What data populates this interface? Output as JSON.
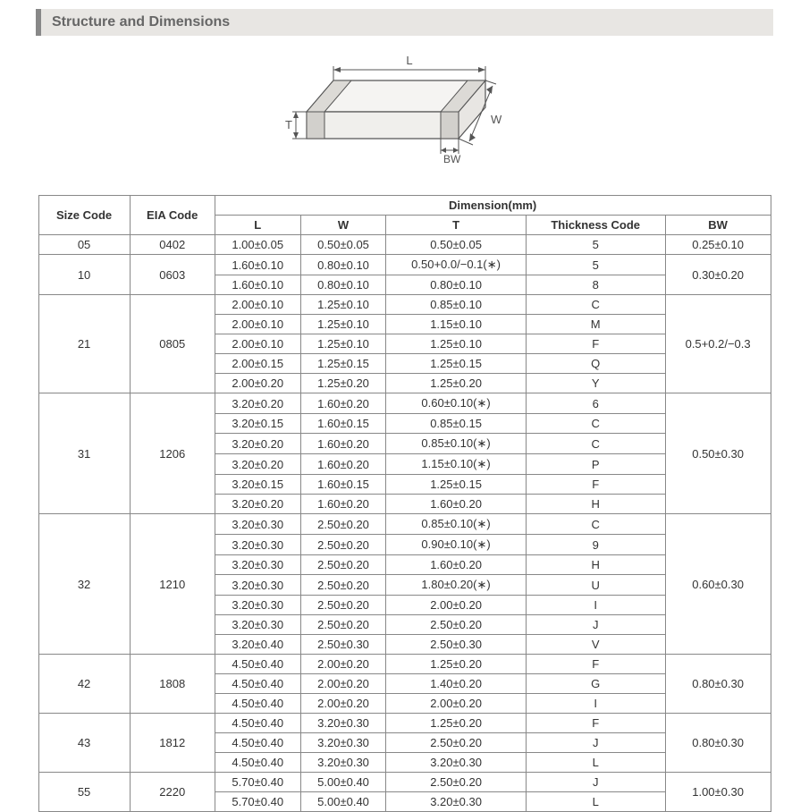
{
  "title": "Structure and Dimensions",
  "diagram": {
    "labels": {
      "L": "L",
      "W": "W",
      "T": "T",
      "BW": "BW"
    },
    "stroke": "#555",
    "fill": "#f5f4f2"
  },
  "table": {
    "headers": {
      "size_code": "Size Code",
      "eia_code": "EIA Code",
      "dimension_group": "Dimension(mm)",
      "L": "L",
      "W": "W",
      "T": "T",
      "thickness_code": "Thickness  Code",
      "BW": "BW"
    },
    "groups": [
      {
        "size_code": "05",
        "eia_code": "0402",
        "bw": "0.25±0.10",
        "rows": [
          {
            "L": "1.00±0.05",
            "W": "0.50±0.05",
            "T": "0.50±0.05",
            "tc": "5"
          }
        ]
      },
      {
        "size_code": "10",
        "eia_code": "0603",
        "bw": "0.30±0.20",
        "rows": [
          {
            "L": "1.60±0.10",
            "W": "0.80±0.10",
            "T": "0.50+0.0/−0.1(∗)",
            "tc": "5"
          },
          {
            "L": "1.60±0.10",
            "W": "0.80±0.10",
            "T": "0.80±0.10",
            "tc": "8"
          }
        ]
      },
      {
        "size_code": "21",
        "eia_code": "0805",
        "bw": "0.5+0.2/−0.3",
        "rows": [
          {
            "L": "2.00±0.10",
            "W": "1.25±0.10",
            "T": "0.85±0.10",
            "tc": "C"
          },
          {
            "L": "2.00±0.10",
            "W": "1.25±0.10",
            "T": "1.15±0.10",
            "tc": "M"
          },
          {
            "L": "2.00±0.10",
            "W": "1.25±0.10",
            "T": "1.25±0.10",
            "tc": "F"
          },
          {
            "L": "2.00±0.15",
            "W": "1.25±0.15",
            "T": "1.25±0.15",
            "tc": "Q"
          },
          {
            "L": "2.00±0.20",
            "W": "1.25±0.20",
            "T": "1.25±0.20",
            "tc": "Y"
          }
        ]
      },
      {
        "size_code": "31",
        "eia_code": "1206",
        "bw": "0.50±0.30",
        "rows": [
          {
            "L": "3.20±0.20",
            "W": "1.60±0.20",
            "T": "0.60±0.10(∗)",
            "tc": "6"
          },
          {
            "L": "3.20±0.15",
            "W": "1.60±0.15",
            "T": "0.85±0.15",
            "tc": "C"
          },
          {
            "L": "3.20±0.20",
            "W": "1.60±0.20",
            "T": "0.85±0.10(∗)",
            "tc": "C"
          },
          {
            "L": "3.20±0.20",
            "W": "1.60±0.20",
            "T": "1.15±0.10(∗)",
            "tc": "P"
          },
          {
            "L": "3.20±0.15",
            "W": "1.60±0.15",
            "T": "1.25±0.15",
            "tc": "F"
          },
          {
            "L": "3.20±0.20",
            "W": "1.60±0.20",
            "T": "1.60±0.20",
            "tc": "H"
          }
        ]
      },
      {
        "size_code": "32",
        "eia_code": "1210",
        "bw": "0.60±0.30",
        "rows": [
          {
            "L": "3.20±0.30",
            "W": "2.50±0.20",
            "T": "0.85±0.10(∗)",
            "tc": "C"
          },
          {
            "L": "3.20±0.30",
            "W": "2.50±0.20",
            "T": "0.90±0.10(∗)",
            "tc": "9"
          },
          {
            "L": "3.20±0.30",
            "W": "2.50±0.20",
            "T": "1.60±0.20",
            "tc": "H"
          },
          {
            "L": "3.20±0.30",
            "W": "2.50±0.20",
            "T": "1.80±0.20(∗)",
            "tc": "U"
          },
          {
            "L": "3.20±0.30",
            "W": "2.50±0.20",
            "T": "2.00±0.20",
            "tc": "I"
          },
          {
            "L": "3.20±0.30",
            "W": "2.50±0.20",
            "T": "2.50±0.20",
            "tc": "J"
          },
          {
            "L": "3.20±0.40",
            "W": "2.50±0.30",
            "T": "2.50±0.30",
            "tc": "V"
          }
        ]
      },
      {
        "size_code": "42",
        "eia_code": "1808",
        "bw": "0.80±0.30",
        "rows": [
          {
            "L": "4.50±0.40",
            "W": "2.00±0.20",
            "T": "1.25±0.20",
            "tc": "F"
          },
          {
            "L": "4.50±0.40",
            "W": "2.00±0.20",
            "T": "1.40±0.20",
            "tc": "G"
          },
          {
            "L": "4.50±0.40",
            "W": "2.00±0.20",
            "T": "2.00±0.20",
            "tc": "I"
          }
        ]
      },
      {
        "size_code": "43",
        "eia_code": "1812",
        "bw": "0.80±0.30",
        "rows": [
          {
            "L": "4.50±0.40",
            "W": "3.20±0.30",
            "T": "1.25±0.20",
            "tc": "F"
          },
          {
            "L": "4.50±0.40",
            "W": "3.20±0.30",
            "T": "2.50±0.20",
            "tc": "J"
          },
          {
            "L": "4.50±0.40",
            "W": "3.20±0.30",
            "T": "3.20±0.30",
            "tc": "L"
          }
        ]
      },
      {
        "size_code": "55",
        "eia_code": "2220",
        "bw": "1.00±0.30",
        "rows": [
          {
            "L": "5.70±0.40",
            "W": "5.00±0.40",
            "T": "2.50±0.20",
            "tc": "J"
          },
          {
            "L": "5.70±0.40",
            "W": "5.00±0.40",
            "T": "3.20±0.30",
            "tc": "L"
          }
        ]
      }
    ]
  }
}
